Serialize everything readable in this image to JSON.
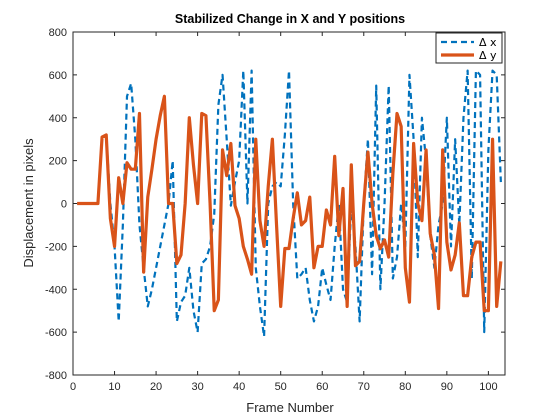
{
  "chart_data": {
    "type": "line",
    "title": "Stabilized Change in X and Y positions",
    "xlabel": "Frame Number",
    "ylabel": "Displacement in pixels",
    "xlim": [
      0,
      104
    ],
    "ylim": [
      -800,
      800
    ],
    "xticks": [
      0,
      10,
      20,
      30,
      40,
      50,
      60,
      70,
      80,
      90,
      100
    ],
    "yticks": [
      -800,
      -600,
      -400,
      -200,
      0,
      200,
      400,
      600,
      800
    ],
    "legend_position": "top-right",
    "series": [
      {
        "name": "Δ x",
        "color": "#0072BD",
        "style": "dashed",
        "x": [
          1,
          2,
          3,
          4,
          5,
          6,
          7,
          8,
          9,
          10,
          11,
          12,
          13,
          14,
          15,
          16,
          17,
          18,
          19,
          20,
          21,
          22,
          23,
          24,
          25,
          26,
          27,
          28,
          29,
          30,
          31,
          32,
          33,
          34,
          35,
          36,
          37,
          38,
          39,
          40,
          41,
          42,
          43,
          44,
          45,
          46,
          47,
          48,
          49,
          50,
          51,
          52,
          53,
          54,
          55,
          56,
          57,
          58,
          59,
          60,
          61,
          62,
          63,
          64,
          65,
          66,
          67,
          68,
          69,
          70,
          71,
          72,
          73,
          74,
          75,
          76,
          77,
          78,
          79,
          80,
          81,
          82,
          83,
          84,
          85,
          86,
          87,
          88,
          89,
          90,
          91,
          92,
          93,
          94,
          95,
          96,
          97,
          98,
          99,
          100,
          101,
          102,
          103
        ],
        "y": [
          0,
          0,
          0,
          0,
          0,
          0,
          300,
          320,
          0,
          -200,
          -550,
          -100,
          500,
          560,
          300,
          -100,
          -300,
          -480,
          -400,
          -300,
          -200,
          -100,
          0,
          200,
          -550,
          -460,
          -430,
          -300,
          -500,
          -600,
          -280,
          -260,
          -200,
          -50,
          460,
          600,
          300,
          -10,
          100,
          200,
          620,
          0,
          620,
          -300,
          -480,
          -620,
          0,
          80,
          100,
          80,
          320,
          620,
          0,
          -350,
          -330,
          -300,
          -450,
          -550,
          -480,
          -300,
          -380,
          -450,
          -200,
          0,
          -400,
          -460,
          0,
          -200,
          -550,
          0,
          300,
          -330,
          550,
          -400,
          0,
          550,
          -350,
          -250,
          0,
          -200,
          600,
          300,
          -250,
          400,
          200,
          -150,
          -300,
          -100,
          0,
          400,
          -200,
          300,
          -100,
          400,
          620,
          -350,
          620,
          600,
          -600,
          250,
          620,
          600,
          100
        ]
      },
      {
        "name": "Δ y",
        "color": "#D95319",
        "style": "solid",
        "x": [
          1,
          2,
          3,
          4,
          5,
          6,
          7,
          8,
          9,
          10,
          11,
          12,
          13,
          14,
          15,
          16,
          17,
          18,
          19,
          20,
          21,
          22,
          23,
          24,
          25,
          26,
          27,
          28,
          29,
          30,
          31,
          32,
          33,
          34,
          35,
          36,
          37,
          38,
          39,
          40,
          41,
          42,
          43,
          44,
          45,
          46,
          47,
          48,
          49,
          50,
          51,
          52,
          53,
          54,
          55,
          56,
          57,
          58,
          59,
          60,
          61,
          62,
          63,
          64,
          65,
          66,
          67,
          68,
          69,
          70,
          71,
          72,
          73,
          74,
          75,
          76,
          77,
          78,
          79,
          80,
          81,
          82,
          83,
          84,
          85,
          86,
          87,
          88,
          89,
          90,
          91,
          92,
          93,
          94,
          95,
          96,
          97,
          98,
          99,
          100,
          101,
          102,
          103
        ],
        "y": [
          0,
          0,
          0,
          0,
          0,
          0,
          310,
          320,
          -70,
          -200,
          120,
          0,
          190,
          160,
          160,
          420,
          -320,
          30,
          160,
          300,
          410,
          500,
          0,
          0,
          -280,
          -240,
          0,
          400,
          180,
          0,
          420,
          410,
          0,
          -500,
          -450,
          250,
          130,
          280,
          -10,
          -70,
          -200,
          -260,
          -330,
          300,
          -80,
          -200,
          80,
          300,
          -100,
          -480,
          -210,
          -210,
          -70,
          50,
          -100,
          -80,
          30,
          -300,
          -200,
          -200,
          -30,
          -100,
          220,
          -150,
          70,
          -480,
          180,
          -290,
          -270,
          0,
          240,
          0,
          -150,
          -210,
          -170,
          -250,
          140,
          420,
          360,
          -300,
          -460,
          280,
          0,
          -80,
          250,
          -140,
          -240,
          -490,
          250,
          -180,
          -310,
          -240,
          -90,
          -430,
          -430,
          -250,
          -180,
          -180,
          -500,
          -500,
          300,
          -480,
          -270
        ]
      }
    ]
  }
}
